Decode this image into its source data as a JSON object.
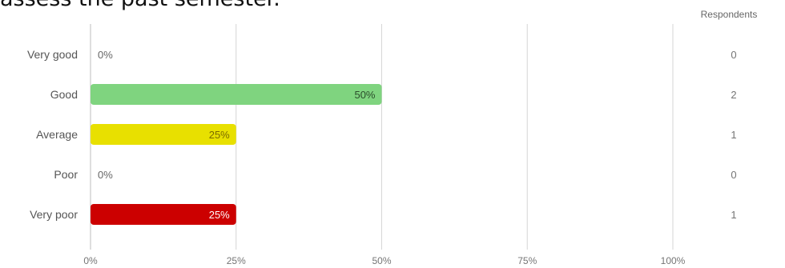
{
  "chart_data": {
    "type": "bar",
    "orientation": "horizontal",
    "title": "assess the past semester.",
    "categories": [
      "Very good",
      "Good",
      "Average",
      "Poor",
      "Very poor"
    ],
    "values": [
      0,
      50,
      25,
      0,
      25
    ],
    "value_labels": [
      "0%",
      "50%",
      "25%",
      "0%",
      "25%"
    ],
    "bar_colors": [
      "#9e9e9e",
      "#7fd47f",
      "#e8e000",
      "#9e9e9e",
      "#cc0000"
    ],
    "value_label_colors": [
      "#666666",
      "#2b4d2b",
      "#7a6a00",
      "#666666",
      "#ffffff"
    ],
    "xlim": [
      0,
      100
    ],
    "x_ticks": [
      "0%",
      "25%",
      "50%",
      "75%",
      "100%"
    ],
    "grid": true,
    "respondents_header": "Respondents",
    "respondents": [
      "0",
      "2",
      "1",
      "0",
      "1"
    ]
  }
}
